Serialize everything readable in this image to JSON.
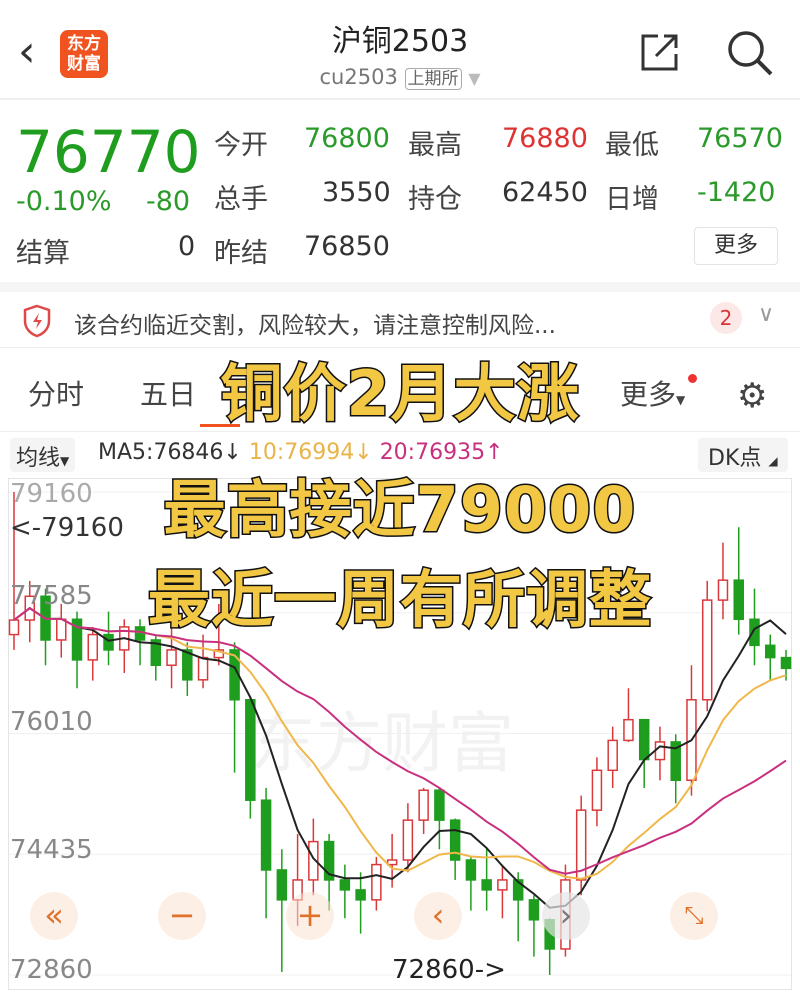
{
  "header": {
    "back_icon": "chevron-left-icon",
    "logo_text": "东方财富",
    "title": "沪铜2503",
    "code": "cu2503",
    "exchange": "上期所",
    "share_icon": "share-icon",
    "search_icon": "search-icon"
  },
  "quote": {
    "price": "76770",
    "pct": "-0.10%",
    "change": "-80",
    "fields": [
      {
        "label": "今开",
        "value": "76800",
        "color": "green"
      },
      {
        "label": "最高",
        "value": "76880",
        "color": "red"
      },
      {
        "label": "最低",
        "value": "76570",
        "color": "green"
      },
      {
        "label": "总手",
        "value": "3550",
        "color": "black"
      },
      {
        "label": "持仓",
        "value": "62450",
        "color": "black"
      },
      {
        "label": "日增",
        "value": "-1420",
        "color": "green"
      },
      {
        "label": "结算",
        "value": "0",
        "color": "black"
      },
      {
        "label": "昨结",
        "value": "76850",
        "color": "black"
      }
    ],
    "more": "更多"
  },
  "risk": {
    "icon": "shield-lightning-icon",
    "text": "该合约临近交割，风险较大，请注意控制风险...",
    "count": "2"
  },
  "tabs": [
    {
      "label": "分时"
    },
    {
      "label": "五日"
    },
    {
      "label": "更多"
    }
  ],
  "ma": {
    "selector": "均线",
    "ma5": "MA5:76846↓",
    "ma10": "10:76994↓",
    "ma20": "20:76935↑",
    "dk": "DK点"
  },
  "overlay": [
    "铜价2月大涨",
    "最高接近79000",
    "最近一周有所调整"
  ],
  "watermark": "东方财富",
  "colors": {
    "up": "#d9393b",
    "down": "#1f9d1f",
    "ma5": "#222222",
    "ma10": "#f0b74a",
    "ma20": "#c8307f",
    "accent": "#f0531f"
  },
  "chart_data": {
    "type": "candlestick",
    "y_ticks": [
      "79160",
      "77585",
      "76010",
      "74435",
      "72860"
    ],
    "ylim": [
      72860,
      79160
    ],
    "max_marker": "<-79160",
    "min_marker": "72860->",
    "candles": [
      [
        77300,
        77490,
        79160,
        77100
      ],
      [
        77490,
        77800,
        78000,
        77200
      ],
      [
        77800,
        77230,
        77900,
        76900
      ],
      [
        77230,
        77500,
        77700,
        77000
      ],
      [
        77500,
        76970,
        77600,
        76600
      ],
      [
        76970,
        77300,
        77400,
        76700
      ],
      [
        77300,
        77100,
        77600,
        76900
      ],
      [
        77100,
        77400,
        77500,
        76800
      ],
      [
        77400,
        77230,
        77500,
        76900
      ],
      [
        77230,
        76900,
        77300,
        76700
      ],
      [
        76900,
        77100,
        77400,
        76600
      ],
      [
        77100,
        76710,
        77200,
        76500
      ],
      [
        76710,
        77000,
        77300,
        76600
      ],
      [
        77000,
        77100,
        77700,
        76900
      ],
      [
        77100,
        76450,
        77200,
        75500
      ],
      [
        76450,
        75140,
        76500,
        74900
      ],
      [
        75140,
        74230,
        75300,
        73600
      ],
      [
        74230,
        73840,
        74500,
        72900
      ],
      [
        73840,
        74100,
        74700,
        73500
      ],
      [
        74100,
        74600,
        74900,
        73900
      ],
      [
        74600,
        74100,
        74700,
        73700
      ],
      [
        74100,
        73970,
        74300,
        73600
      ],
      [
        73970,
        73840,
        74200,
        73400
      ],
      [
        73840,
        74300,
        74400,
        73700
      ],
      [
        74300,
        74360,
        74700,
        74000
      ],
      [
        74360,
        74880,
        75100,
        74200
      ],
      [
        74880,
        75270,
        75300,
        74700
      ],
      [
        75270,
        74880,
        75300,
        74500
      ],
      [
        74880,
        74360,
        74900,
        74100
      ],
      [
        74360,
        74100,
        74400,
        73700
      ],
      [
        74100,
        73970,
        74500,
        73700
      ],
      [
        73970,
        74100,
        74300,
        73600
      ],
      [
        74100,
        73840,
        74200,
        73300
      ],
      [
        73840,
        73580,
        73900,
        73100
      ],
      [
        73580,
        73200,
        73600,
        72860
      ],
      [
        73200,
        74100,
        74300,
        73100
      ],
      [
        74100,
        75010,
        75200,
        73900
      ],
      [
        75010,
        75530,
        75700,
        74800
      ],
      [
        75530,
        75920,
        76100,
        75300
      ],
      [
        75920,
        76190,
        76600,
        75900
      ],
      [
        76190,
        75670,
        76200,
        75300
      ],
      [
        75670,
        75900,
        76100,
        75400
      ],
      [
        75900,
        75400,
        76000,
        75100
      ],
      [
        75400,
        76450,
        76900,
        75200
      ],
      [
        76450,
        77750,
        78000,
        76300
      ],
      [
        77750,
        78010,
        78500,
        77500
      ],
      [
        78010,
        77500,
        78700,
        77300
      ],
      [
        77500,
        77160,
        77900,
        76900
      ],
      [
        77160,
        77000,
        77300,
        76700
      ],
      [
        77000,
        76860,
        77100,
        76700
      ]
    ]
  }
}
